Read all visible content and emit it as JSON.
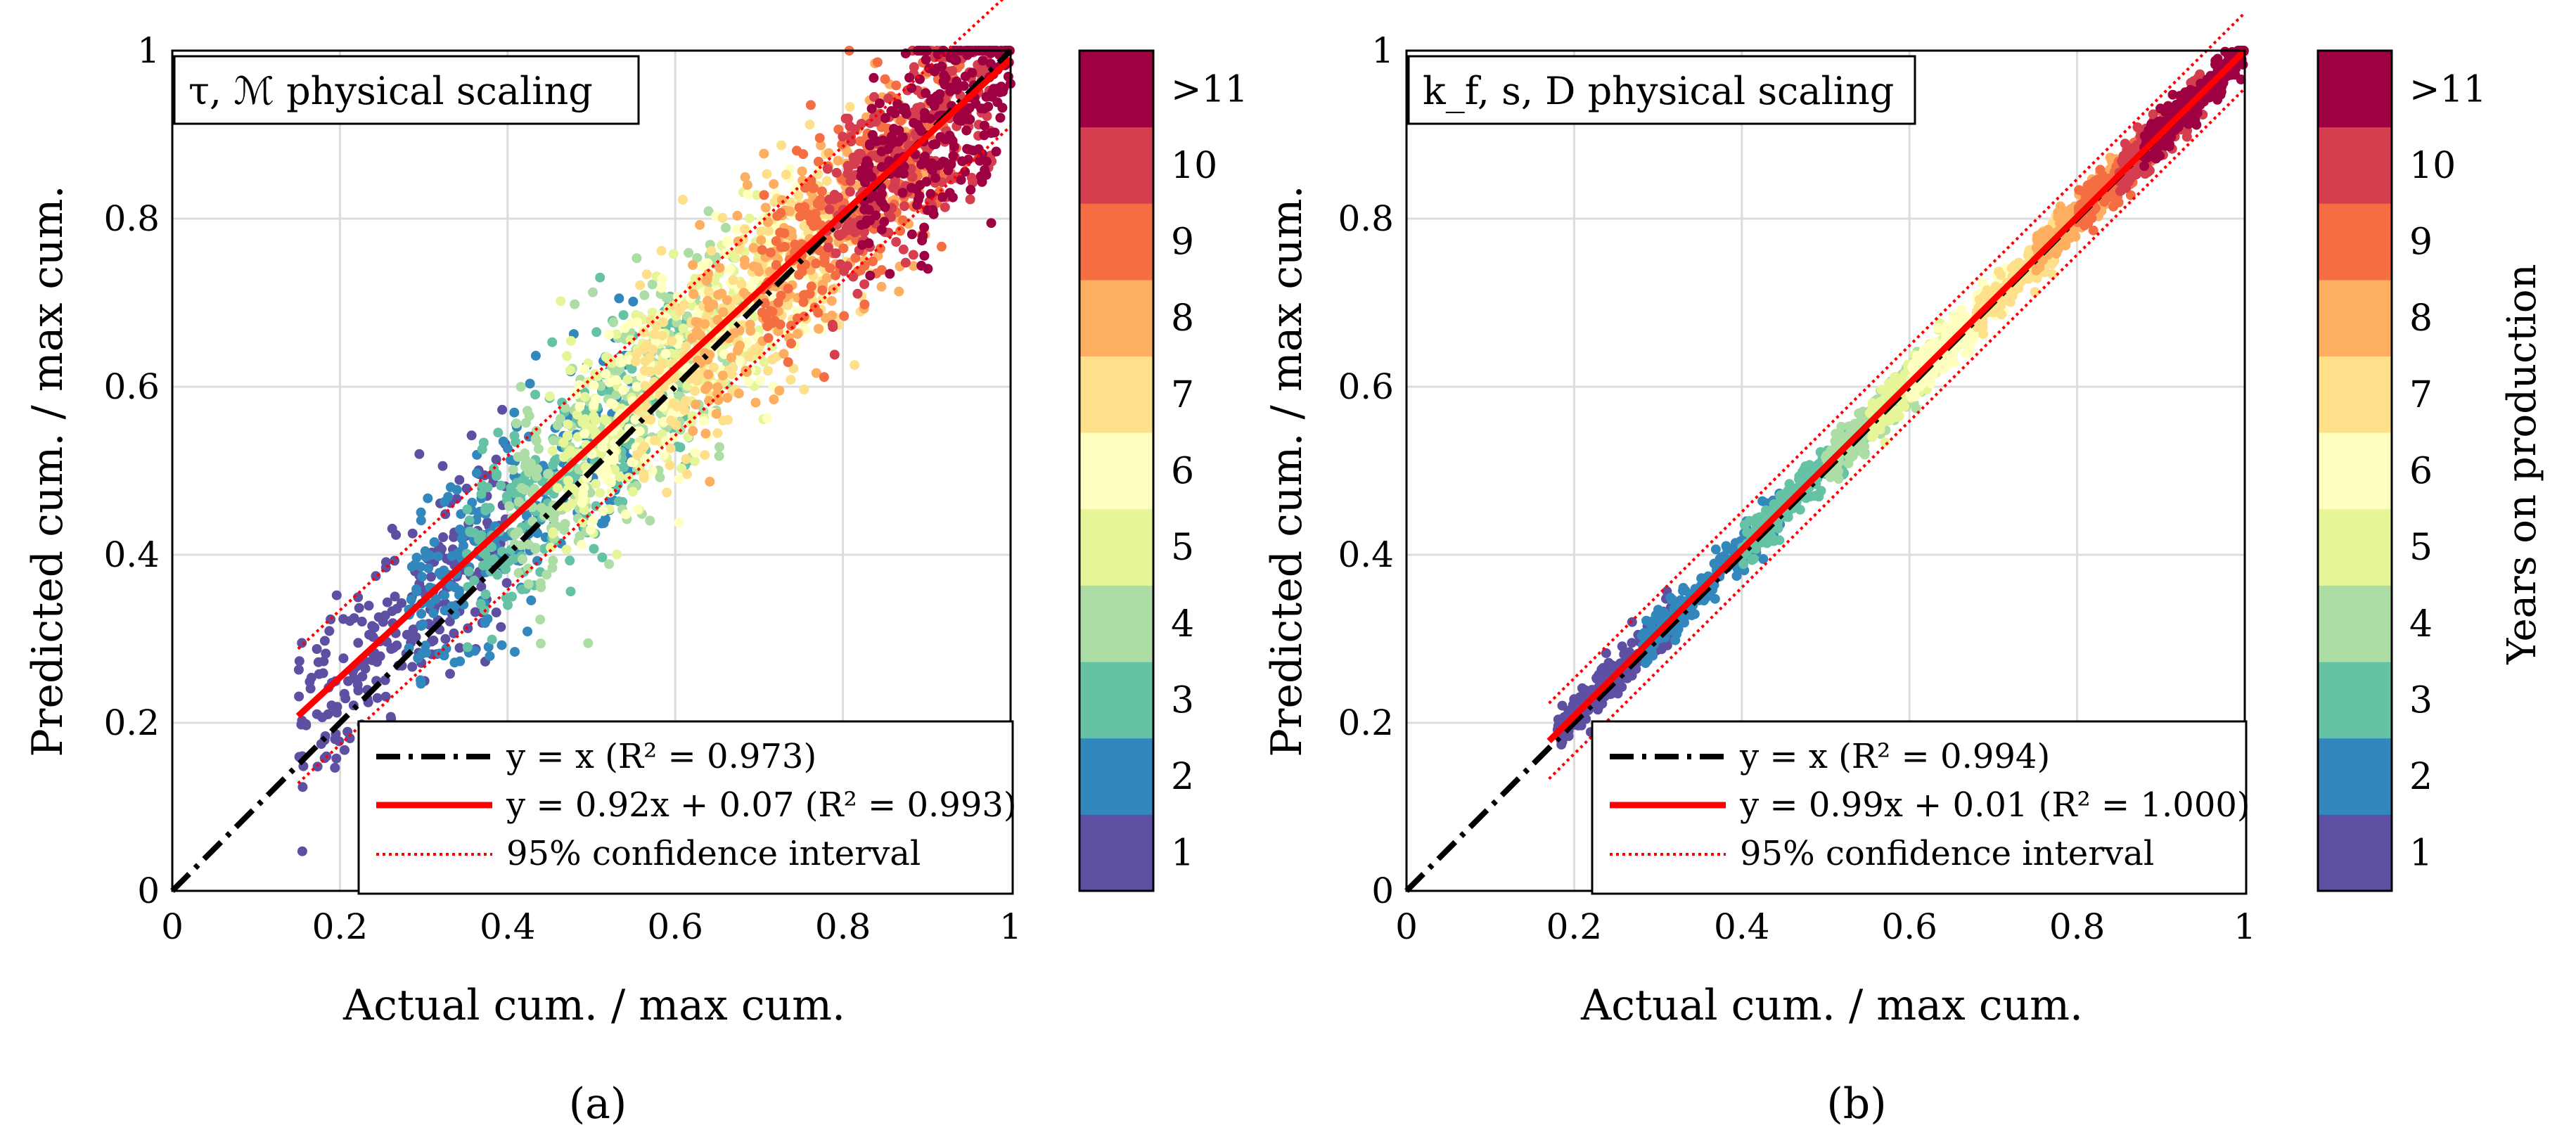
{
  "chart_data": [
    {
      "type": "scatter",
      "panel_label": "(a)",
      "title": "τ, ℳ physical scaling",
      "xlabel": "Actual cum. / max cum.",
      "ylabel": "Predicted cum. / max cum.",
      "xlim": [
        0,
        1
      ],
      "ylim": [
        0,
        1
      ],
      "x_ticks": [
        "0",
        "0.2",
        "0.4",
        "0.6",
        "0.8",
        "1"
      ],
      "y_ticks": [
        "0",
        "0.2",
        "0.4",
        "0.6",
        "0.8",
        "1"
      ],
      "grid": true,
      "spread": 0.06,
      "clusters": [
        {
          "year": 1,
          "x_range": [
            0.15,
            0.4
          ]
        },
        {
          "year": 2,
          "x_range": [
            0.28,
            0.55
          ]
        },
        {
          "year": 3,
          "x_range": [
            0.35,
            0.62
          ]
        },
        {
          "year": 4,
          "x_range": [
            0.4,
            0.68
          ]
        },
        {
          "year": 5,
          "x_range": [
            0.45,
            0.72
          ]
        },
        {
          "year": 6,
          "x_range": [
            0.48,
            0.78
          ]
        },
        {
          "year": 7,
          "x_range": [
            0.55,
            0.85
          ]
        },
        {
          "year": 8,
          "x_range": [
            0.62,
            0.9
          ]
        },
        {
          "year": 9,
          "x_range": [
            0.7,
            0.95
          ]
        },
        {
          "year": 10,
          "x_range": [
            0.78,
            0.98
          ]
        },
        {
          "year": 11,
          "x_range": [
            0.82,
            1.0
          ]
        }
      ],
      "series": [
        {
          "name": "y = x (R² = 0.973)",
          "slope": 1.0,
          "intercept": 0.0,
          "x_range": [
            0,
            1
          ],
          "style": "dashdot",
          "color": "#000000"
        },
        {
          "name": "y = 0.92x + 0.07 (R² = 0.993)",
          "slope": 0.92,
          "intercept": 0.07,
          "x_range": [
            0.15,
            1.0
          ],
          "style": "solid",
          "color": "#ff0000"
        },
        {
          "name": "95% confidence interval",
          "slope": 0.92,
          "intercept": 0.07,
          "offset": 0.08,
          "x_range": [
            0.15,
            1.0
          ],
          "style": "dotted",
          "color": "#ff0000"
        }
      ],
      "legend": {
        "position": "bottom-right",
        "entries": [
          "y = x (R² = 0.973)",
          "y = 0.92x + 0.07 (R² = 0.993)",
          "95% confidence interval"
        ]
      }
    },
    {
      "type": "scatter",
      "panel_label": "(b)",
      "title": "k_f, s, D physical scaling",
      "xlabel": "Actual cum. / max cum.",
      "ylabel": "Predicted cum. / max cum.",
      "xlim": [
        0,
        1
      ],
      "ylim": [
        0,
        1
      ],
      "x_ticks": [
        "0",
        "0.2",
        "0.4",
        "0.6",
        "0.8",
        "1"
      ],
      "y_ticks": [
        "0",
        "0.2",
        "0.4",
        "0.6",
        "0.8",
        "1"
      ],
      "grid": true,
      "spread": 0.012,
      "clusters": [
        {
          "year": 1,
          "x_range": [
            0.18,
            0.32
          ]
        },
        {
          "year": 2,
          "x_range": [
            0.28,
            0.45
          ]
        },
        {
          "year": 3,
          "x_range": [
            0.4,
            0.55
          ]
        },
        {
          "year": 4,
          "x_range": [
            0.5,
            0.62
          ]
        },
        {
          "year": 5,
          "x_range": [
            0.55,
            0.66
          ]
        },
        {
          "year": 6,
          "x_range": [
            0.6,
            0.72
          ]
        },
        {
          "year": 7,
          "x_range": [
            0.68,
            0.78
          ]
        },
        {
          "year": 8,
          "x_range": [
            0.75,
            0.85
          ]
        },
        {
          "year": 9,
          "x_range": [
            0.8,
            0.9
          ]
        },
        {
          "year": 10,
          "x_range": [
            0.85,
            0.95
          ]
        },
        {
          "year": 11,
          "x_range": [
            0.88,
            1.0
          ]
        }
      ],
      "series": [
        {
          "name": "y = x (R² = 0.994)",
          "slope": 1.0,
          "intercept": 0.0,
          "x_range": [
            0,
            1
          ],
          "style": "dashdot",
          "color": "#000000"
        },
        {
          "name": "y = 0.99x + 0.01 (R² = 1.000)",
          "slope": 0.99,
          "intercept": 0.01,
          "x_range": [
            0.17,
            1.0
          ],
          "style": "solid",
          "color": "#ff0000"
        },
        {
          "name": "95% confidence interval",
          "slope": 0.99,
          "intercept": 0.01,
          "offset": 0.045,
          "x_range": [
            0.17,
            1.0
          ],
          "style": "dotted",
          "color": "#ff0000"
        }
      ],
      "legend": {
        "position": "bottom-right",
        "entries": [
          "y = x (R² = 0.994)",
          "y = 0.99x + 0.01 (R² = 1.000)",
          "95% confidence interval"
        ]
      }
    }
  ],
  "colorbar": {
    "label": "Years on production",
    "labels": [
      "1",
      "2",
      "3",
      "4",
      "5",
      "6",
      "7",
      "8",
      "9",
      "10",
      ">11"
    ],
    "colors": [
      "#5e4fa2",
      "#3288bd",
      "#66c2a5",
      "#abdda4",
      "#e6f598",
      "#ffffbf",
      "#fee08b",
      "#fdae61",
      "#f46d43",
      "#d53e4f",
      "#9e0142"
    ]
  }
}
